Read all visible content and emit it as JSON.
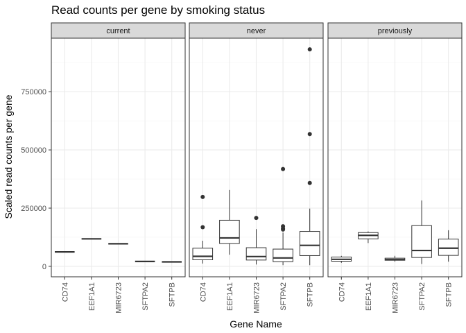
{
  "chart_data": {
    "type": "boxplot",
    "title": "Read counts per gene by smoking status",
    "xlabel": "Gene Name",
    "ylabel": "Scaled read counts per gene",
    "ylim": [
      -45000,
      980000
    ],
    "y_ticks": [
      0,
      250000,
      500000,
      750000
    ],
    "y_tick_labels": [
      "0",
      "250000",
      "500000",
      "750000"
    ],
    "categories": [
      "CD74",
      "EEF1A1",
      "MIR6723",
      "SFTPA2",
      "SFTPB"
    ],
    "grid": true,
    "colors": {
      "panel_border": "#333333",
      "strip_fill": "#d9d9d9",
      "grid_major": "#ebebeb",
      "grid_minor": "#f5f5f5",
      "box": "#333333"
    },
    "facets": [
      {
        "label": "current",
        "boxes": [
          {
            "category": "CD74",
            "min": 62000,
            "q1": 62000,
            "median": 62000,
            "q3": 62000,
            "max": 62000,
            "outliers": []
          },
          {
            "category": "EEF1A1",
            "min": 118000,
            "q1": 118000,
            "median": 118000,
            "q3": 118000,
            "max": 118000,
            "outliers": []
          },
          {
            "category": "MIR6723",
            "min": 97000,
            "q1": 97000,
            "median": 97000,
            "q3": 97000,
            "max": 97000,
            "outliers": []
          },
          {
            "category": "SFTPA2",
            "min": 21000,
            "q1": 21000,
            "median": 21000,
            "q3": 21000,
            "max": 21000,
            "outliers": []
          },
          {
            "category": "SFTPB",
            "min": 19000,
            "q1": 19000,
            "median": 19000,
            "q3": 19000,
            "max": 19000,
            "outliers": []
          }
        ]
      },
      {
        "label": "never",
        "boxes": [
          {
            "category": "CD74",
            "min": 12000,
            "q1": 28000,
            "median": 43000,
            "q3": 78000,
            "max": 110000,
            "outliers": [
              168000,
              298000
            ]
          },
          {
            "category": "EEF1A1",
            "min": 50000,
            "q1": 98000,
            "median": 122000,
            "q3": 198000,
            "max": 328000,
            "outliers": []
          },
          {
            "category": "MIR6723",
            "min": 8000,
            "q1": 27000,
            "median": 42000,
            "q3": 80000,
            "max": 160000,
            "outliers": [
              208000
            ]
          },
          {
            "category": "SFTPA2",
            "min": 5000,
            "q1": 20000,
            "median": 36000,
            "q3": 74000,
            "max": 145000,
            "outliers": [
              158000,
              163000,
              172000,
              418000
            ]
          },
          {
            "category": "SFTPB",
            "min": 5000,
            "q1": 46000,
            "median": 90000,
            "q3": 150000,
            "max": 248000,
            "outliers": [
              358000,
              568000,
              932000
            ]
          }
        ]
      },
      {
        "label": "previously",
        "boxes": [
          {
            "category": "CD74",
            "min": 15000,
            "q1": 22000,
            "median": 30000,
            "q3": 40000,
            "max": 45000,
            "outliers": []
          },
          {
            "category": "EEF1A1",
            "min": 100000,
            "q1": 118000,
            "median": 133000,
            "q3": 145000,
            "max": 150000,
            "outliers": []
          },
          {
            "category": "MIR6723",
            "min": 20000,
            "q1": 26000,
            "median": 29000,
            "q3": 35000,
            "max": 45000,
            "outliers": []
          },
          {
            "category": "SFTPA2",
            "min": 10000,
            "q1": 38000,
            "median": 68000,
            "q3": 175000,
            "max": 283000,
            "outliers": []
          },
          {
            "category": "SFTPB",
            "min": 20000,
            "q1": 47000,
            "median": 78000,
            "q3": 117000,
            "max": 155000,
            "outliers": []
          }
        ]
      }
    ]
  }
}
